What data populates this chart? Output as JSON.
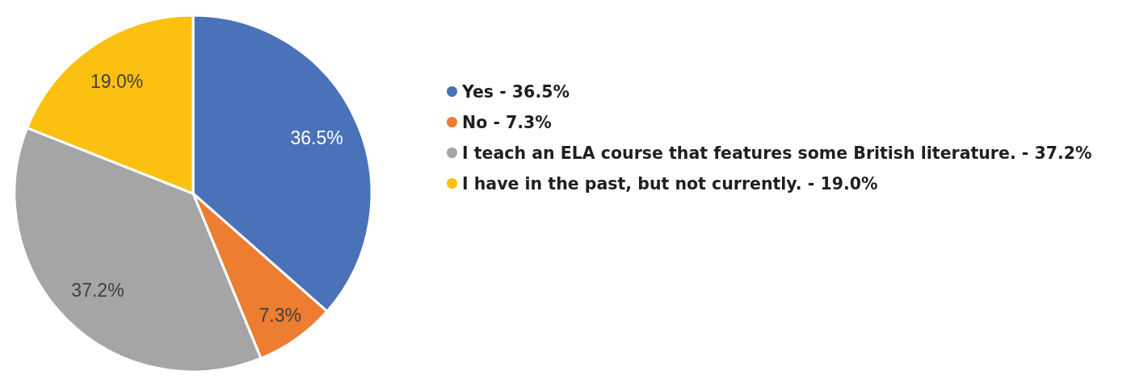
{
  "chart_data": {
    "type": "pie",
    "categories": [
      "Yes - 36.5%",
      "No - 7.3%",
      "I teach an ELA course that features some British literature. - 37.2%",
      "I have in the past, but not currently. - 19.0%"
    ],
    "values": [
      36.5,
      7.3,
      37.2,
      19.0
    ],
    "colors": [
      "#4a72b8",
      "#ed7d31",
      "#a5a5a5",
      "#fcc010"
    ],
    "value_labels": [
      "36.5%",
      "7.3%",
      "37.2%",
      "19.0%"
    ],
    "legend": "right"
  }
}
